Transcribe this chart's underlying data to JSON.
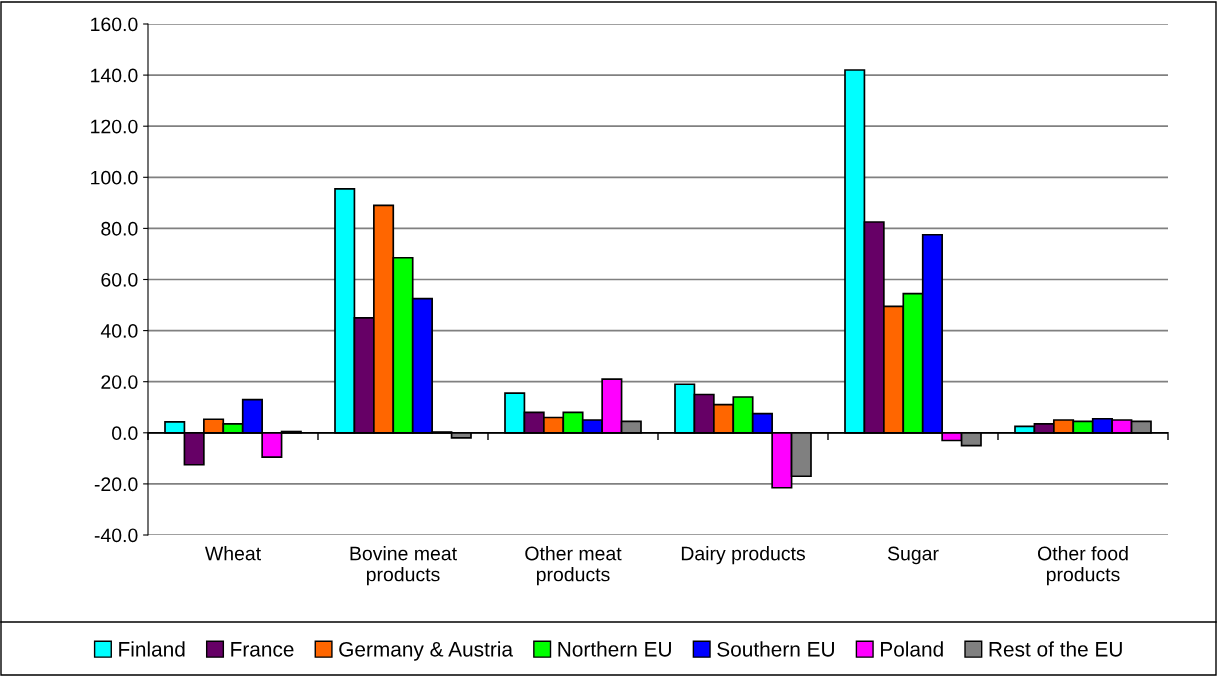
{
  "chart_data": {
    "type": "bar",
    "categories": [
      "Wheat",
      "Bovine meat\nproducts",
      "Other meat\nproducts",
      "Dairy products",
      "Sugar",
      "Other food\nproducts"
    ],
    "series": [
      {
        "name": "Finland",
        "color": "#00ffff",
        "values": [
          4.3,
          95.5,
          15.5,
          19,
          142,
          2.5
        ]
      },
      {
        "name": "France",
        "color": "#660066",
        "values": [
          -12.5,
          45,
          8,
          15,
          82.5,
          3.5
        ]
      },
      {
        "name": "Germany & Austria",
        "color": "#ff6600",
        "values": [
          5.3,
          89,
          6,
          11,
          49.5,
          5
        ]
      },
      {
        "name": "Northern EU",
        "color": "#00ff00",
        "values": [
          3.5,
          68.5,
          8,
          14,
          54.5,
          4.5
        ]
      },
      {
        "name": "Southern EU",
        "color": "#0000ff",
        "values": [
          13,
          52.5,
          5,
          7.5,
          77.5,
          5.5
        ]
      },
      {
        "name": "Poland",
        "color": "#ff00ff",
        "values": [
          -9.5,
          0.3,
          21,
          -21.5,
          -3,
          5
        ]
      },
      {
        "name": "Rest of the EU",
        "color": "#808080",
        "values": [
          0.5,
          -2,
          4.5,
          -17,
          -5,
          4.5
        ]
      }
    ],
    "ylim": [
      -40,
      160
    ],
    "yticks": [
      {
        "value": -40,
        "label": "-40.0"
      },
      {
        "value": -20,
        "label": "-20.0"
      },
      {
        "value": 0,
        "label": "0.0"
      },
      {
        "value": 20,
        "label": "20.0"
      },
      {
        "value": 40,
        "label": "40.0"
      },
      {
        "value": 60,
        "label": "60.0"
      },
      {
        "value": 80,
        "label": "80.0"
      },
      {
        "value": 100,
        "label": "100.0"
      },
      {
        "value": 120,
        "label": "120.0"
      },
      {
        "value": 140,
        "label": "140.0"
      },
      {
        "value": 160,
        "label": "160.0"
      }
    ],
    "grid": "y",
    "legend": "bottom"
  }
}
